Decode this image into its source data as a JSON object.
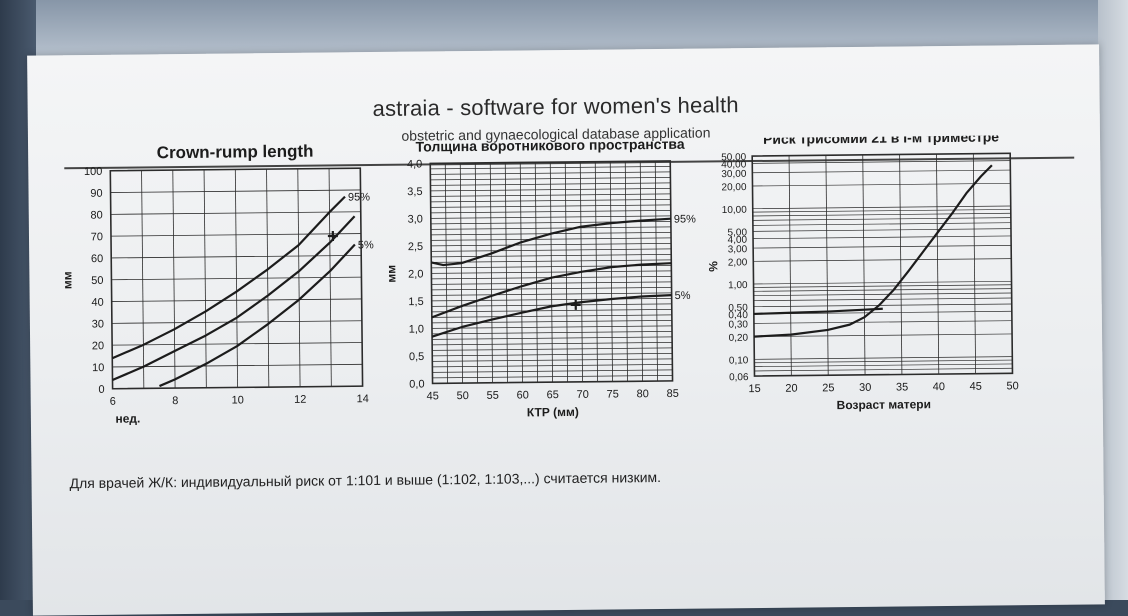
{
  "header": {
    "title": "astraia - software for women's health",
    "subtitle": "obstetric and gynaecological database application"
  },
  "footer": {
    "note": "Для врачей Ж/К: индивидуальный риск от 1:101 и выше (1:102, 1:103,...) считается низким."
  },
  "colors": {
    "ink": "#1c1c1c",
    "grid": "#2c2c2c",
    "paper": "#f1f2f3"
  },
  "chart_data": [
    {
      "type": "line",
      "title": "Crown-rump length",
      "xlabel": "нед.",
      "ylabel": "мм",
      "xlim": [
        6,
        14
      ],
      "ylim": [
        0,
        100
      ],
      "x_ticks": [
        6,
        8,
        10,
        12,
        14
      ],
      "y_ticks": [
        0,
        10,
        20,
        30,
        40,
        50,
        60,
        70,
        80,
        90,
        100
      ],
      "grid": true,
      "series": [
        {
          "name": "95%",
          "x": [
            6,
            7,
            8,
            9,
            10,
            11,
            12,
            13,
            13.5
          ],
          "y": [
            14,
            20,
            27,
            35,
            44,
            54,
            65,
            80,
            87
          ]
        },
        {
          "name": "",
          "x": [
            6,
            7,
            8,
            9,
            10,
            11,
            12,
            13,
            13.8
          ],
          "y": [
            4,
            10,
            17,
            24,
            32,
            42,
            53,
            66,
            78
          ]
        },
        {
          "name": "5%",
          "x": [
            7.5,
            8,
            9,
            10,
            11,
            12,
            13,
            13.8
          ],
          "y": [
            1,
            4,
            11,
            19,
            29,
            40,
            53,
            65
          ]
        }
      ],
      "marker": {
        "x": 13.1,
        "y": 69
      }
    },
    {
      "type": "line",
      "title": "Толщина воротникового пространства",
      "xlabel": "КТР (мм)",
      "ylabel": "мм",
      "xlim": [
        45,
        85
      ],
      "ylim": [
        0,
        4
      ],
      "x_ticks": [
        45,
        50,
        55,
        60,
        65,
        70,
        75,
        80,
        85
      ],
      "y_ticks": [
        "0,0",
        "0,5",
        "1,0",
        "1,5",
        "2,0",
        "2,5",
        "3,0",
        "3,5",
        "4,0"
      ],
      "grid": true,
      "series": [
        {
          "name": "95%",
          "x": [
            45,
            47,
            50,
            55,
            60,
            65,
            70,
            75,
            80,
            85
          ],
          "y": [
            2.2,
            2.15,
            2.18,
            2.35,
            2.55,
            2.7,
            2.82,
            2.88,
            2.92,
            2.95
          ]
        },
        {
          "name": "",
          "x": [
            45,
            50,
            55,
            60,
            65,
            70,
            75,
            80,
            85
          ],
          "y": [
            1.2,
            1.4,
            1.58,
            1.75,
            1.9,
            2.0,
            2.08,
            2.12,
            2.14
          ]
        },
        {
          "name": "5%",
          "x": [
            45,
            50,
            55,
            60,
            65,
            70,
            75,
            80,
            85
          ],
          "y": [
            0.85,
            1.02,
            1.15,
            1.27,
            1.38,
            1.45,
            1.5,
            1.54,
            1.56
          ]
        }
      ],
      "marker": {
        "x": 69,
        "y": 1.4
      }
    },
    {
      "type": "line",
      "title": "Риск трисомии 21 в I-м триместре",
      "xlabel": "Возраст матери",
      "ylabel": "%",
      "xlim": [
        15,
        50
      ],
      "yscale": "log",
      "x_ticks": [
        15,
        20,
        25,
        30,
        35,
        40,
        45,
        50
      ],
      "y_ticks": [
        "0,06",
        "0,10",
        "0,20",
        "0,30",
        "0,40",
        "0,50",
        "1,00",
        "2,00",
        "3,00",
        "4,00",
        "5,00",
        "10,00",
        "20,00",
        "30,00",
        "40,00",
        "50,00"
      ],
      "y_tick_values": [
        0.06,
        0.1,
        0.2,
        0.3,
        0.4,
        0.5,
        1,
        2,
        3,
        4,
        5,
        10,
        20,
        30,
        40,
        50
      ],
      "grid": true,
      "series": [
        {
          "name": "",
          "x": [
            15,
            20,
            25,
            28,
            30,
            32,
            34,
            36,
            38,
            40,
            42,
            44,
            46,
            47.5
          ],
          "y": [
            0.2,
            0.21,
            0.24,
            0.28,
            0.35,
            0.5,
            0.8,
            1.4,
            2.5,
            4.5,
            8,
            15,
            25,
            35
          ]
        },
        {
          "name": "",
          "x": [
            15,
            20,
            25,
            30,
            32.5
          ],
          "y": [
            0.4,
            0.41,
            0.42,
            0.44,
            0.45
          ]
        }
      ]
    }
  ]
}
